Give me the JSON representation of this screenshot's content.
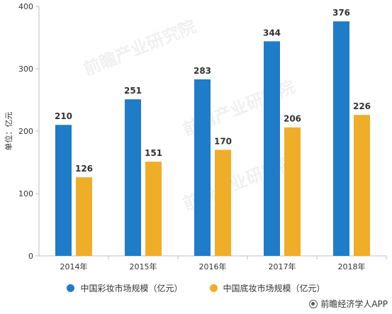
{
  "chart_data": {
    "type": "bar",
    "categories": [
      "2014年",
      "2015年",
      "2016年",
      "2017年",
      "2018年"
    ],
    "series": [
      {
        "name": "中国彩妆市场规模（亿元）",
        "values": [
          210,
          251,
          283,
          344,
          376
        ],
        "color": "#1f7cc9"
      },
      {
        "name": "中国底妆市场规模（亿元）",
        "values": [
          126,
          151,
          170,
          206,
          226
        ],
        "color": "#f0ad28"
      }
    ],
    "ylabel": "单位：亿元",
    "ylim": [
      0,
      400
    ],
    "yticks": [
      0,
      100,
      200,
      300,
      400
    ],
    "grid": false,
    "legend_position": "bottom"
  },
  "credit": "前瞻经济学人APP",
  "watermark": "前瞻产业研究院"
}
